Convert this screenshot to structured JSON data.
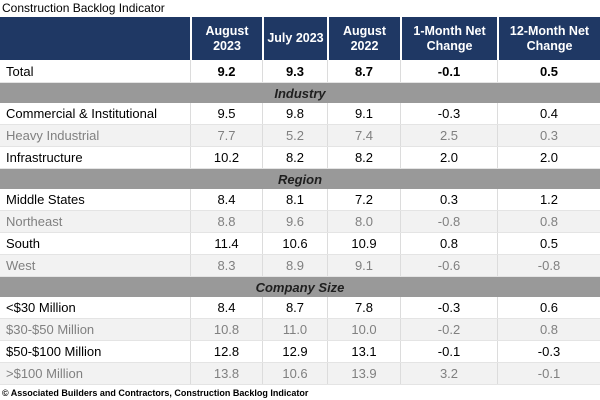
{
  "title": "Construction Backlog Indicator",
  "footer": "© Associated Builders and Contractors, Construction Backlog Indicator",
  "colors": {
    "header_bg": "#1F3864",
    "header_text": "#FFFFFF",
    "section_bg": "#999999",
    "section_text": "#1F1F1F",
    "alt_row_bg": "#F2F2F2",
    "alt_row_text": "#808080",
    "row_text": "#000000",
    "grid_line": "#DCDCDC"
  },
  "chart_data": {
    "type": "table",
    "title": "Construction Backlog Indicator",
    "columns": [
      "August 2023",
      "July 2023",
      "August 2022",
      "1-Month Net Change",
      "12-Month Net Change"
    ],
    "rows": [
      {
        "kind": "data",
        "style": "total",
        "label": "Total",
        "values": [
          "9.2",
          "9.3",
          "8.7",
          "-0.1",
          "0.5"
        ]
      },
      {
        "kind": "section",
        "label": "Industry"
      },
      {
        "kind": "data",
        "style": "white",
        "label": "Commercial & Institutional",
        "values": [
          "9.5",
          "9.8",
          "9.1",
          "-0.3",
          "0.4"
        ]
      },
      {
        "kind": "data",
        "style": "gray",
        "label": "Heavy Industrial",
        "values": [
          "7.7",
          "5.2",
          "7.4",
          "2.5",
          "0.3"
        ]
      },
      {
        "kind": "data",
        "style": "white",
        "label": "Infrastructure",
        "values": [
          "10.2",
          "8.2",
          "8.2",
          "2.0",
          "2.0"
        ]
      },
      {
        "kind": "section",
        "label": "Region"
      },
      {
        "kind": "data",
        "style": "white",
        "label": "Middle States",
        "values": [
          "8.4",
          "8.1",
          "7.2",
          "0.3",
          "1.2"
        ]
      },
      {
        "kind": "data",
        "style": "gray",
        "label": "Northeast",
        "values": [
          "8.8",
          "9.6",
          "8.0",
          "-0.8",
          "0.8"
        ]
      },
      {
        "kind": "data",
        "style": "white",
        "label": "South",
        "values": [
          "11.4",
          "10.6",
          "10.9",
          "0.8",
          "0.5"
        ]
      },
      {
        "kind": "data",
        "style": "gray",
        "label": "West",
        "values": [
          "8.3",
          "8.9",
          "9.1",
          "-0.6",
          "-0.8"
        ]
      },
      {
        "kind": "section",
        "label": "Company Size"
      },
      {
        "kind": "data",
        "style": "white",
        "label": "<$30 Million",
        "values": [
          "8.4",
          "8.7",
          "7.8",
          "-0.3",
          "0.6"
        ]
      },
      {
        "kind": "data",
        "style": "gray",
        "label": "$30-$50 Million",
        "values": [
          "10.8",
          "11.0",
          "10.0",
          "-0.2",
          "0.8"
        ]
      },
      {
        "kind": "data",
        "style": "white",
        "label": "$50-$100 Million",
        "values": [
          "12.8",
          "12.9",
          "13.1",
          "-0.1",
          "-0.3"
        ]
      },
      {
        "kind": "data",
        "style": "gray",
        "label": ">$100 Million",
        "values": [
          "13.8",
          "10.6",
          "13.9",
          "3.2",
          "-0.1"
        ]
      }
    ]
  }
}
